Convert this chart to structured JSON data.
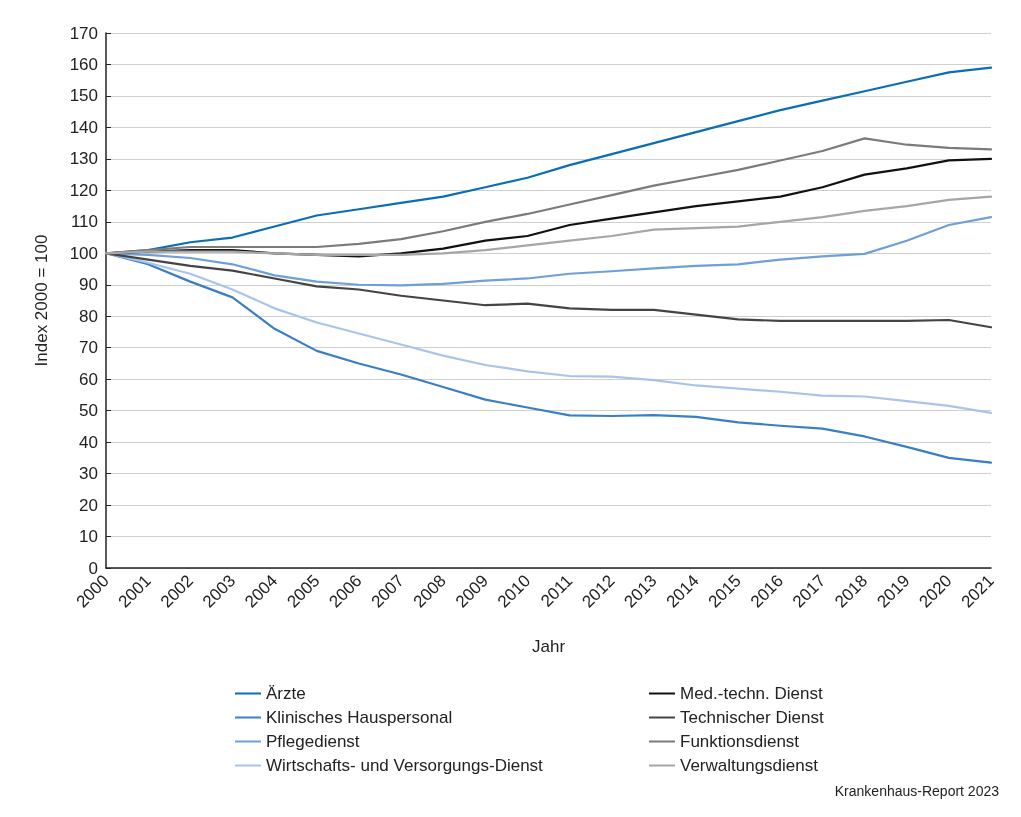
{
  "chart_data": {
    "type": "line",
    "xlabel": "Jahr",
    "ylabel": "Index 2000 = 100",
    "categories": [
      "2000",
      "2001",
      "2002",
      "2003",
      "2004",
      "2005",
      "2006",
      "2007",
      "2008",
      "2009",
      "2010",
      "2011",
      "2012",
      "2013",
      "2014",
      "2015",
      "2016",
      "2017",
      "2018",
      "2019",
      "2020",
      "2021"
    ],
    "series": [
      {
        "name": "Ärzte",
        "color": "#0a6eb4",
        "values": [
          100,
          101,
          103.5,
          105,
          108.5,
          112,
          114,
          116,
          118,
          121,
          124,
          128,
          131.5,
          135,
          138.5,
          142,
          145.5,
          148.5,
          151.5,
          154.5,
          157.5,
          159
        ]
      },
      {
        "name": "Klinisches Hauspersonal",
        "color": "#3a7fc4",
        "values": [
          100,
          96.5,
          91,
          86,
          76,
          69,
          65,
          61.5,
          57.5,
          53.5,
          51,
          48.5,
          48.3,
          48.6,
          48,
          46.3,
          45.2,
          44.3,
          41.8,
          38.5,
          35,
          33.5
        ]
      },
      {
        "name": "Pflegedienst",
        "color": "#6f9fd8",
        "values": [
          100,
          99.5,
          98.5,
          96.5,
          93,
          91,
          90,
          89.8,
          90.3,
          91.3,
          92,
          93.5,
          94.3,
          95.2,
          96,
          96.5,
          98,
          99,
          99.8,
          104,
          109,
          111.5
        ]
      },
      {
        "name": "Wirtschafts- und Versorgungs-Dienst",
        "color": "#a8c4ea",
        "values": [
          100,
          97,
          93.5,
          88.5,
          82.5,
          78,
          74.5,
          71,
          67.5,
          64.5,
          62.5,
          61,
          60.8,
          59.7,
          58,
          57,
          56,
          54.8,
          54.5,
          53,
          51.5,
          49.3
        ]
      },
      {
        "name": "Med.-techn. Dienst",
        "color": "#111111",
        "values": [
          100,
          100.5,
          101,
          101,
          100,
          99.5,
          99,
          100,
          101.5,
          104,
          105.5,
          109,
          111,
          113,
          115,
          116.5,
          118,
          121,
          125,
          127,
          129.5,
          130
        ]
      },
      {
        "name": "Technischer Dienst",
        "color": "#444444",
        "values": [
          100,
          98,
          96,
          94.5,
          92,
          89.5,
          88.5,
          86.5,
          85,
          83.5,
          84,
          82.5,
          82,
          82,
          80.5,
          79,
          78.5,
          78.5,
          78.5,
          78.5,
          78.8,
          76.5
        ]
      },
      {
        "name": "Funktionsdienst",
        "color": "#7b7b7b",
        "values": [
          100,
          101,
          102,
          102,
          102,
          102,
          103,
          104.5,
          107,
          110,
          112.5,
          115.5,
          118.5,
          121.5,
          124,
          126.5,
          129.5,
          132.5,
          136.5,
          134.5,
          133.5,
          133
        ]
      },
      {
        "name": "Verwaltungsdienst",
        "color": "#a6a6a6",
        "values": [
          100,
          100.5,
          100.5,
          100.5,
          100,
          99.5,
          99.5,
          99.5,
          100,
          101,
          102.5,
          104,
          105.5,
          107.5,
          108,
          108.5,
          110,
          111.5,
          113.5,
          115,
          117,
          118
        ]
      }
    ],
    "ylim": [
      0,
      170
    ],
    "yticks": [
      0,
      10,
      20,
      30,
      40,
      50,
      60,
      70,
      80,
      90,
      100,
      110,
      120,
      130,
      140,
      150,
      160,
      170
    ],
    "grid": "y",
    "legend": "bottom",
    "marker": "none",
    "line_style": "solid",
    "annotations": [
      "Krankenhaus-Report 2023"
    ]
  }
}
